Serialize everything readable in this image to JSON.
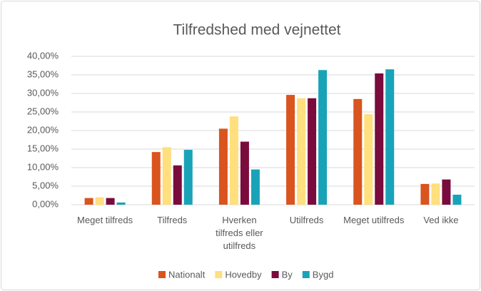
{
  "chart_data": {
    "type": "bar",
    "title": "Tilfredshed med vejnettet",
    "categories": [
      "Meget tilfreds",
      "Tilfreds",
      "Hverken tilfreds eller utilfreds",
      "Utilfreds",
      "Meget utilfreds",
      "Ved ikke"
    ],
    "series": [
      {
        "name": "Nationalt",
        "color": "#d9541e",
        "values": [
          1.8,
          14.2,
          20.5,
          29.6,
          28.5,
          5.6
        ]
      },
      {
        "name": "Hovedby",
        "color": "#ffdf7e",
        "values": [
          2.0,
          15.5,
          23.8,
          28.7,
          24.4,
          5.7
        ]
      },
      {
        "name": "By",
        "color": "#7a0b3d",
        "values": [
          1.8,
          10.6,
          17.0,
          28.7,
          35.4,
          6.8
        ]
      },
      {
        "name": "Bygd",
        "color": "#19a3b8",
        "values": [
          0.6,
          14.8,
          9.5,
          36.3,
          36.5,
          2.7
        ]
      }
    ],
    "ylim": [
      0,
      40
    ],
    "yticks": [
      {
        "value": 0,
        "label": "0,00%"
      },
      {
        "value": 5,
        "label": "5,00%"
      },
      {
        "value": 10,
        "label": "10,00%"
      },
      {
        "value": 15,
        "label": "15,00%"
      },
      {
        "value": 20,
        "label": "20,00%"
      },
      {
        "value": 25,
        "label": "25,00%"
      },
      {
        "value": 30,
        "label": "30,00%"
      },
      {
        "value": 35,
        "label": "35,00%"
      },
      {
        "value": 40,
        "label": "40,00%"
      }
    ],
    "grid": true,
    "legend": "bottom"
  }
}
